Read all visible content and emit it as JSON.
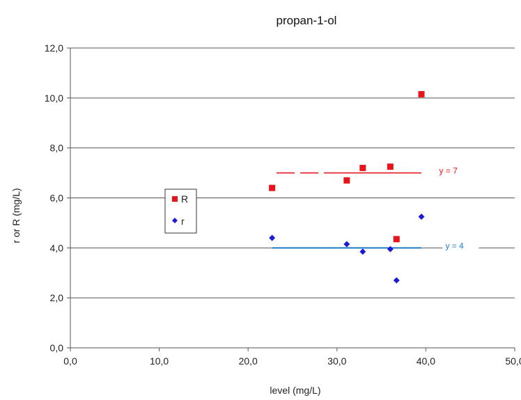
{
  "chart_data": {
    "type": "scatter",
    "title": "propan-1-ol",
    "xlabel": "level (mg/L)",
    "ylabel": "r or R (mg/L)",
    "xlim": [
      0,
      50
    ],
    "ylim": [
      0,
      12
    ],
    "x_ticks": [
      0,
      10,
      20,
      30,
      40,
      50
    ],
    "y_ticks": [
      0,
      2,
      4,
      6,
      8,
      10,
      12
    ],
    "x_tick_labels": [
      "0,0",
      "10,0",
      "20,0",
      "30,0",
      "40,0",
      "50,0"
    ],
    "y_tick_labels": [
      "0,0",
      "2,0",
      "4,0",
      "6,0",
      "8,0",
      "10,0",
      "12,0"
    ],
    "grid": "horizontal",
    "legend": "left",
    "series": [
      {
        "name": "R",
        "marker": "square",
        "color": "#e8141c",
        "x": [
          22.7,
          31.1,
          32.9,
          36.0,
          36.7,
          39.5
        ],
        "y": [
          6.4,
          6.7,
          7.2,
          7.25,
          4.35,
          10.15
        ]
      },
      {
        "name": "r",
        "marker": "diamond",
        "color": "#1b1bd6",
        "x": [
          22.7,
          31.1,
          32.9,
          36.0,
          36.7,
          39.5
        ],
        "y": [
          4.4,
          4.15,
          3.85,
          3.95,
          2.7,
          5.25
        ]
      }
    ],
    "reference_lines": [
      {
        "label": "y = 7",
        "y": 7,
        "x_start": 23.2,
        "x_end": 39.5,
        "color": "#e8141c",
        "style": "dashed-solid",
        "label_x": 41.5
      },
      {
        "label": "y = 4",
        "y": 4,
        "x_start": 22.7,
        "x_end": 39.5,
        "color": "#1e7bc4",
        "style": "solid",
        "label_x": 42.2
      }
    ]
  }
}
